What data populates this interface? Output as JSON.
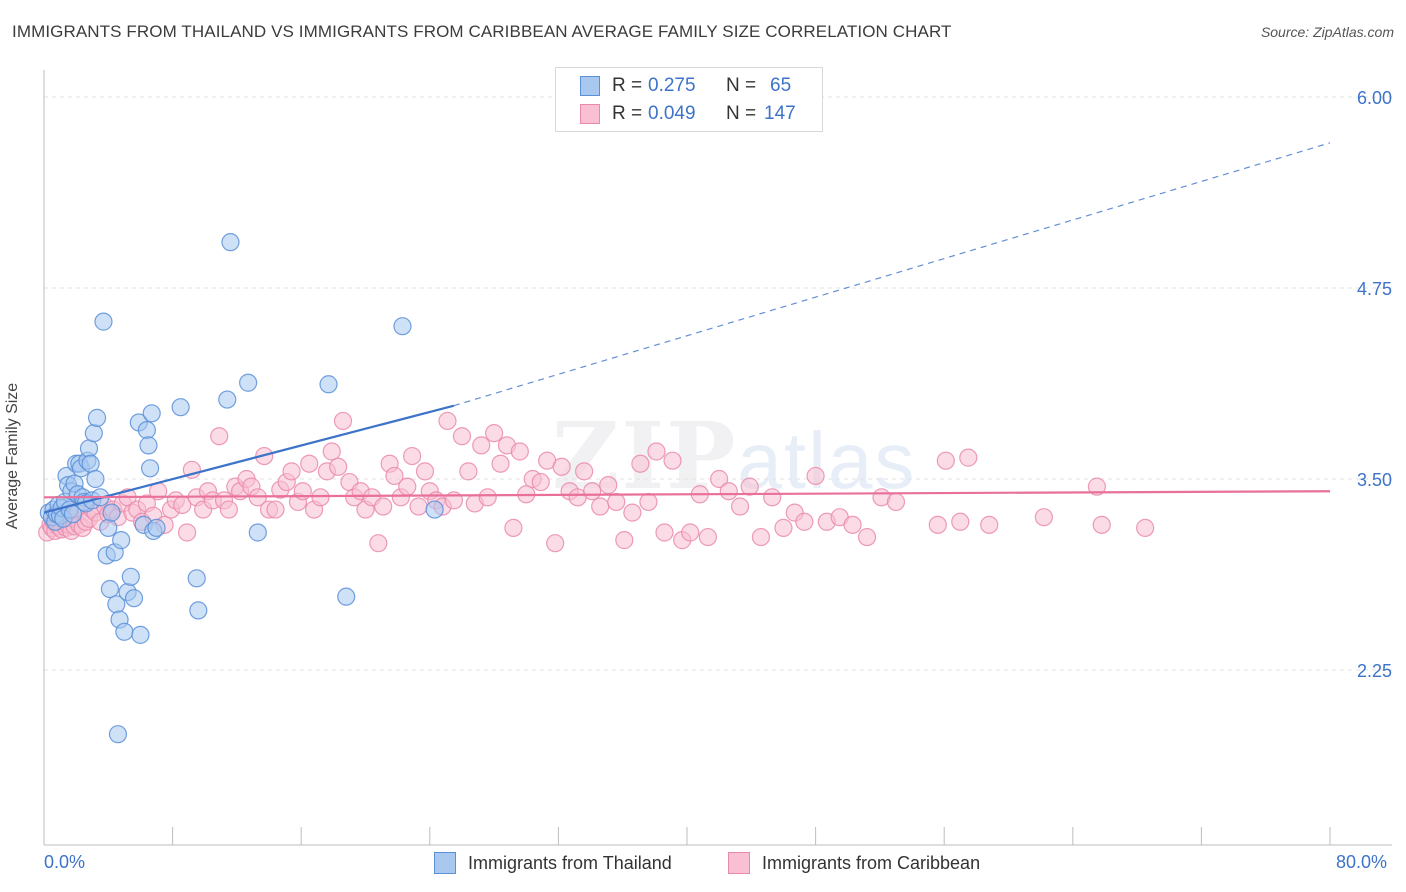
{
  "title": "IMMIGRANTS FROM THAILAND VS IMMIGRANTS FROM CARIBBEAN AVERAGE FAMILY SIZE CORRELATION CHART",
  "source": "Source: ZipAtlas.com",
  "watermark": {
    "main": "ZIP",
    "sub": "atlas"
  },
  "legend": {
    "rows": [
      {
        "r_label": "R = ",
        "r_value": "0.275",
        "n_label": "N = ",
        "n_value": "65"
      },
      {
        "r_label": "R = ",
        "r_value": "0.049",
        "n_label": "N = ",
        "n_value": "147"
      }
    ]
  },
  "colors": {
    "thailand_fill": "#a8c8f0",
    "thailand_stroke": "#5b8fd8",
    "thailand_line": "#3d73c9",
    "caribbean_fill": "#f8c0d2",
    "caribbean_stroke": "#ea8aab",
    "caribbean_line": "#e8709a",
    "axis_label": "#3d73c9",
    "grid": "#e2e2e2"
  },
  "chart_data": {
    "type": "scatter",
    "title": "IMMIGRANTS FROM THAILAND VS IMMIGRANTS FROM CARIBBEAN AVERAGE FAMILY SIZE CORRELATION CHART",
    "xlabel": "",
    "ylabel": "Average Family Size",
    "xlim": [
      0,
      80
    ],
    "ylim": [
      1.25,
      6.25
    ],
    "x_tick_labels": [
      "0.0%",
      "80.0%"
    ],
    "y_ticks": [
      2.25,
      3.5,
      4.75,
      6.0
    ],
    "y_tick_labels": [
      "2.25",
      "3.50",
      "4.75",
      "6.00"
    ],
    "grid": "horizontal dashed",
    "legend_position": "top-center",
    "series": [
      {
        "name": "Immigrants from Thailand",
        "R": 0.275,
        "N": 65,
        "trend": {
          "x": [
            0,
            25.5
          ],
          "y": [
            3.28,
            3.98
          ],
          "extended_to": [
            80,
            5.7
          ]
        },
        "points": [
          [
            0.3,
            3.28
          ],
          [
            0.5,
            3.25
          ],
          [
            0.6,
            3.3
          ],
          [
            0.7,
            3.22
          ],
          [
            0.8,
            3.27
          ],
          [
            0.9,
            3.33
          ],
          [
            1.0,
            3.26
          ],
          [
            1.1,
            3.31
          ],
          [
            1.2,
            3.24
          ],
          [
            1.3,
            3.35
          ],
          [
            1.4,
            3.52
          ],
          [
            1.5,
            3.46
          ],
          [
            1.6,
            3.3
          ],
          [
            1.7,
            3.42
          ],
          [
            1.8,
            3.27
          ],
          [
            1.9,
            3.47
          ],
          [
            2.0,
            3.6
          ],
          [
            2.1,
            3.4
          ],
          [
            2.2,
            3.6
          ],
          [
            2.3,
            3.57
          ],
          [
            2.4,
            3.38
          ],
          [
            2.5,
            3.35
          ],
          [
            2.6,
            3.34
          ],
          [
            2.7,
            3.62
          ],
          [
            2.8,
            3.7
          ],
          [
            2.9,
            3.6
          ],
          [
            3.0,
            3.36
          ],
          [
            3.1,
            3.8
          ],
          [
            3.2,
            3.5
          ],
          [
            3.3,
            3.9
          ],
          [
            3.5,
            3.38
          ],
          [
            3.7,
            4.53
          ],
          [
            3.9,
            3.0
          ],
          [
            4.0,
            3.18
          ],
          [
            4.1,
            2.78
          ],
          [
            4.2,
            3.28
          ],
          [
            4.4,
            3.02
          ],
          [
            4.5,
            2.68
          ],
          [
            4.6,
            1.83
          ],
          [
            4.7,
            2.58
          ],
          [
            4.8,
            3.1
          ],
          [
            5.0,
            2.5
          ],
          [
            5.2,
            2.76
          ],
          [
            5.4,
            2.86
          ],
          [
            5.6,
            2.72
          ],
          [
            5.9,
            3.87
          ],
          [
            6.0,
            2.48
          ],
          [
            6.2,
            3.2
          ],
          [
            6.4,
            3.82
          ],
          [
            6.5,
            3.72
          ],
          [
            6.6,
            3.57
          ],
          [
            6.7,
            3.93
          ],
          [
            6.8,
            3.16
          ],
          [
            7.0,
            3.18
          ],
          [
            8.5,
            3.97
          ],
          [
            9.5,
            2.85
          ],
          [
            9.6,
            2.64
          ],
          [
            11.4,
            4.02
          ],
          [
            11.6,
            5.05
          ],
          [
            12.7,
            4.13
          ],
          [
            13.3,
            3.15
          ],
          [
            17.7,
            4.12
          ],
          [
            18.8,
            2.73
          ],
          [
            22.3,
            4.5
          ],
          [
            24.3,
            3.3
          ]
        ]
      },
      {
        "name": "Immigrants from Caribbean",
        "R": 0.049,
        "N": 147,
        "trend": {
          "x": [
            0,
            80
          ],
          "y": [
            3.38,
            3.42
          ]
        },
        "points": [
          [
            0.2,
            3.15
          ],
          [
            0.4,
            3.2
          ],
          [
            0.5,
            3.18
          ],
          [
            0.6,
            3.22
          ],
          [
            0.7,
            3.16
          ],
          [
            0.8,
            3.24
          ],
          [
            0.9,
            3.19
          ],
          [
            1.0,
            3.21
          ],
          [
            1.1,
            3.17
          ],
          [
            1.2,
            3.26
          ],
          [
            1.3,
            3.23
          ],
          [
            1.4,
            3.18
          ],
          [
            1.5,
            3.2
          ],
          [
            1.6,
            3.28
          ],
          [
            1.7,
            3.16
          ],
          [
            1.8,
            3.24
          ],
          [
            1.9,
            3.19
          ],
          [
            2.0,
            3.3
          ],
          [
            2.2,
            3.2
          ],
          [
            2.4,
            3.18
          ],
          [
            2.6,
            3.22
          ],
          [
            2.8,
            3.24
          ],
          [
            3.0,
            3.3
          ],
          [
            3.2,
            3.28
          ],
          [
            3.5,
            3.22
          ],
          [
            3.8,
            3.32
          ],
          [
            4.0,
            3.27
          ],
          [
            4.3,
            3.3
          ],
          [
            4.6,
            3.25
          ],
          [
            4.9,
            3.34
          ],
          [
            5.2,
            3.38
          ],
          [
            5.5,
            3.28
          ],
          [
            5.8,
            3.3
          ],
          [
            6.1,
            3.22
          ],
          [
            6.4,
            3.34
          ],
          [
            6.8,
            3.26
          ],
          [
            7.1,
            3.42
          ],
          [
            7.5,
            3.2
          ],
          [
            7.9,
            3.3
          ],
          [
            8.2,
            3.36
          ],
          [
            8.6,
            3.33
          ],
          [
            8.9,
            3.15
          ],
          [
            9.2,
            3.56
          ],
          [
            9.5,
            3.38
          ],
          [
            9.9,
            3.3
          ],
          [
            10.2,
            3.42
          ],
          [
            10.5,
            3.36
          ],
          [
            10.9,
            3.78
          ],
          [
            11.2,
            3.36
          ],
          [
            11.5,
            3.3
          ],
          [
            11.9,
            3.45
          ],
          [
            12.2,
            3.42
          ],
          [
            12.6,
            3.5
          ],
          [
            12.9,
            3.45
          ],
          [
            13.3,
            3.38
          ],
          [
            13.7,
            3.65
          ],
          [
            14.0,
            3.3
          ],
          [
            14.4,
            3.3
          ],
          [
            14.7,
            3.43
          ],
          [
            15.1,
            3.48
          ],
          [
            15.4,
            3.55
          ],
          [
            15.8,
            3.35
          ],
          [
            16.1,
            3.42
          ],
          [
            16.5,
            3.6
          ],
          [
            16.8,
            3.3
          ],
          [
            17.2,
            3.38
          ],
          [
            17.6,
            3.55
          ],
          [
            17.9,
            3.68
          ],
          [
            18.3,
            3.58
          ],
          [
            18.6,
            3.88
          ],
          [
            19.0,
            3.48
          ],
          [
            19.3,
            3.38
          ],
          [
            19.7,
            3.42
          ],
          [
            20.0,
            3.3
          ],
          [
            20.4,
            3.38
          ],
          [
            20.8,
            3.08
          ],
          [
            21.1,
            3.32
          ],
          [
            21.5,
            3.6
          ],
          [
            21.8,
            3.52
          ],
          [
            22.2,
            3.38
          ],
          [
            22.6,
            3.45
          ],
          [
            22.9,
            3.65
          ],
          [
            23.3,
            3.32
          ],
          [
            23.7,
            3.55
          ],
          [
            24.0,
            3.42
          ],
          [
            24.4,
            3.36
          ],
          [
            24.8,
            3.32
          ],
          [
            25.1,
            3.88
          ],
          [
            25.5,
            3.36
          ],
          [
            26.0,
            3.78
          ],
          [
            26.4,
            3.55
          ],
          [
            26.8,
            3.34
          ],
          [
            27.2,
            3.72
          ],
          [
            27.6,
            3.38
          ],
          [
            28.0,
            3.8
          ],
          [
            28.4,
            3.6
          ],
          [
            28.8,
            3.72
          ],
          [
            29.2,
            3.18
          ],
          [
            29.6,
            3.68
          ],
          [
            30.0,
            3.4
          ],
          [
            30.4,
            3.5
          ],
          [
            30.9,
            3.48
          ],
          [
            31.3,
            3.62
          ],
          [
            31.8,
            3.08
          ],
          [
            32.2,
            3.58
          ],
          [
            32.7,
            3.42
          ],
          [
            33.2,
            3.38
          ],
          [
            33.6,
            3.55
          ],
          [
            34.1,
            3.42
          ],
          [
            34.6,
            3.32
          ],
          [
            35.1,
            3.46
          ],
          [
            35.6,
            3.35
          ],
          [
            36.1,
            3.1
          ],
          [
            36.6,
            3.28
          ],
          [
            37.1,
            3.6
          ],
          [
            37.6,
            3.35
          ],
          [
            38.1,
            3.68
          ],
          [
            38.6,
            3.15
          ],
          [
            39.1,
            3.62
          ],
          [
            39.7,
            3.1
          ],
          [
            40.2,
            3.15
          ],
          [
            40.8,
            3.4
          ],
          [
            41.3,
            3.12
          ],
          [
            42.0,
            3.5
          ],
          [
            42.6,
            3.42
          ],
          [
            43.3,
            3.32
          ],
          [
            43.9,
            3.45
          ],
          [
            44.6,
            3.12
          ],
          [
            45.3,
            3.38
          ],
          [
            46.0,
            3.18
          ],
          [
            46.7,
            3.28
          ],
          [
            47.3,
            3.22
          ],
          [
            48.0,
            3.52
          ],
          [
            48.7,
            3.22
          ],
          [
            49.5,
            3.25
          ],
          [
            50.3,
            3.2
          ],
          [
            51.2,
            3.12
          ],
          [
            52.1,
            3.38
          ],
          [
            53.0,
            3.35
          ],
          [
            55.6,
            3.2
          ],
          [
            56.1,
            3.62
          ],
          [
            57.5,
            3.64
          ],
          [
            57.0,
            3.22
          ],
          [
            58.8,
            3.2
          ],
          [
            62.2,
            3.25
          ],
          [
            65.5,
            3.45
          ],
          [
            65.8,
            3.2
          ],
          [
            68.5,
            3.18
          ]
        ]
      }
    ]
  },
  "bottom_legend": [
    "Immigrants from Thailand",
    "Immigrants from Caribbean"
  ]
}
